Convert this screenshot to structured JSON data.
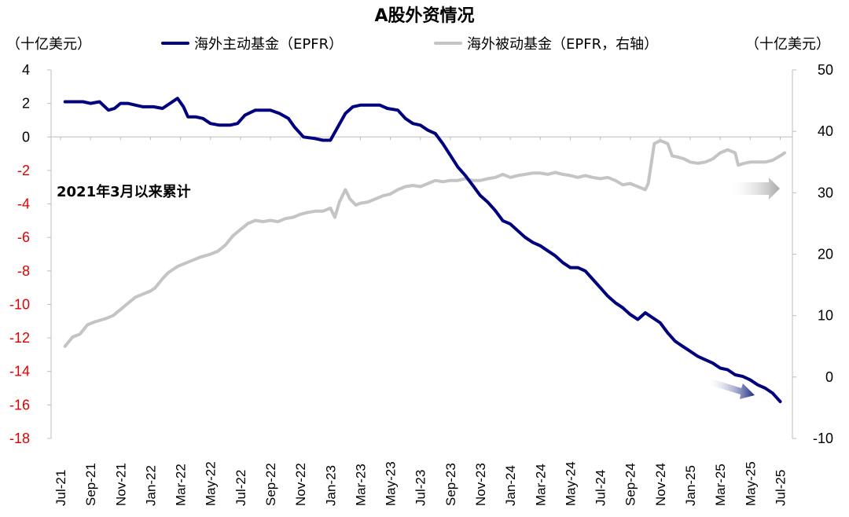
{
  "chart_data": {
    "type": "line",
    "title": "A股外资情况",
    "y_left_label": "（十亿美元）",
    "y_right_label": "（十亿美元）",
    "annotation": "2021年3月以来累计",
    "y_left": {
      "min": -18,
      "max": 4,
      "ticks": [
        4,
        2,
        0,
        -2,
        -4,
        -6,
        -8,
        -10,
        -12,
        -14,
        -16,
        -18
      ]
    },
    "y_right": {
      "min": -10,
      "max": 50,
      "ticks": [
        50,
        40,
        30,
        20,
        10,
        0,
        -10
      ]
    },
    "x_range": [
      0,
      48.5
    ],
    "x_ticks": [
      {
        "label": "Jul-21",
        "m": 0
      },
      {
        "label": "Sep-21",
        "m": 2
      },
      {
        "label": "Nov-21",
        "m": 4
      },
      {
        "label": "Jan-22",
        "m": 6
      },
      {
        "label": "Mar-22",
        "m": 8
      },
      {
        "label": "May-22",
        "m": 10
      },
      {
        "label": "Jul-22",
        "m": 12
      },
      {
        "label": "Sep-22",
        "m": 14
      },
      {
        "label": "Nov-22",
        "m": 16
      },
      {
        "label": "Jan-23",
        "m": 18
      },
      {
        "label": "Mar-23",
        "m": 20
      },
      {
        "label": "May-23",
        "m": 22
      },
      {
        "label": "Jul-23",
        "m": 24
      },
      {
        "label": "Sep-23",
        "m": 26
      },
      {
        "label": "Nov-23",
        "m": 28
      },
      {
        "label": "Jan-24",
        "m": 30
      },
      {
        "label": "Mar-24",
        "m": 32
      },
      {
        "label": "May-24",
        "m": 34
      },
      {
        "label": "Jul-24",
        "m": 36
      },
      {
        "label": "Sep-24",
        "m": 38
      },
      {
        "label": "Nov-24",
        "m": 40
      },
      {
        "label": "Jan-25",
        "m": 42
      },
      {
        "label": "Mar-25",
        "m": 44
      },
      {
        "label": "May-25",
        "m": 46
      },
      {
        "label": "Jul-25",
        "m": 48
      }
    ],
    "series": [
      {
        "name": "海外主动基金（EPFR）",
        "axis": "left",
        "color": "#00007f",
        "points": [
          [
            0.3,
            2.1
          ],
          [
            0.8,
            2.1
          ],
          [
            1.5,
            2.1
          ],
          [
            2,
            2.0
          ],
          [
            2.6,
            2.1
          ],
          [
            3.2,
            1.6
          ],
          [
            3.6,
            1.7
          ],
          [
            4,
            2.0
          ],
          [
            4.5,
            2.0
          ],
          [
            5,
            1.9
          ],
          [
            5.5,
            1.8
          ],
          [
            6.2,
            1.8
          ],
          [
            6.8,
            1.7
          ],
          [
            7.3,
            2.0
          ],
          [
            7.8,
            2.3
          ],
          [
            8.2,
            1.8
          ],
          [
            8.5,
            1.2
          ],
          [
            9,
            1.2
          ],
          [
            9.5,
            1.1
          ],
          [
            10,
            0.8
          ],
          [
            10.6,
            0.7
          ],
          [
            11.3,
            0.7
          ],
          [
            11.8,
            0.8
          ],
          [
            12.3,
            1.3
          ],
          [
            13,
            1.6
          ],
          [
            14,
            1.6
          ],
          [
            14.6,
            1.4
          ],
          [
            15.2,
            1.1
          ],
          [
            15.6,
            0.6
          ],
          [
            16.2,
            0.0
          ],
          [
            17,
            -0.1
          ],
          [
            17.5,
            -0.2
          ],
          [
            18,
            -0.2
          ],
          [
            18.5,
            0.6
          ],
          [
            19,
            1.4
          ],
          [
            19.5,
            1.8
          ],
          [
            20,
            1.9
          ],
          [
            20.7,
            1.9
          ],
          [
            21.3,
            1.9
          ],
          [
            21.8,
            1.7
          ],
          [
            22.5,
            1.6
          ],
          [
            23,
            1.1
          ],
          [
            23.5,
            0.8
          ],
          [
            24,
            0.7
          ],
          [
            24.5,
            0.4
          ],
          [
            25,
            0.2
          ],
          [
            25.5,
            -0.4
          ],
          [
            26,
            -1.1
          ],
          [
            26.5,
            -1.8
          ],
          [
            27,
            -2.3
          ],
          [
            27.5,
            -2.9
          ],
          [
            28,
            -3.5
          ],
          [
            28.5,
            -3.9
          ],
          [
            29,
            -4.4
          ],
          [
            29.5,
            -5.0
          ],
          [
            30,
            -5.2
          ],
          [
            30.5,
            -5.6
          ],
          [
            31,
            -6.0
          ],
          [
            31.5,
            -6.3
          ],
          [
            32,
            -6.5
          ],
          [
            32.5,
            -6.8
          ],
          [
            33,
            -7.1
          ],
          [
            33.5,
            -7.5
          ],
          [
            34,
            -7.8
          ],
          [
            34.5,
            -7.8
          ],
          [
            35,
            -8.0
          ],
          [
            35.5,
            -8.5
          ],
          [
            36,
            -9.0
          ],
          [
            36.5,
            -9.5
          ],
          [
            37,
            -9.9
          ],
          [
            37.5,
            -10.2
          ],
          [
            38,
            -10.6
          ],
          [
            38.5,
            -10.9
          ],
          [
            39,
            -10.5
          ],
          [
            39.5,
            -10.8
          ],
          [
            40,
            -11.1
          ],
          [
            40.5,
            -11.7
          ],
          [
            41,
            -12.2
          ],
          [
            41.5,
            -12.5
          ],
          [
            42,
            -12.8
          ],
          [
            42.5,
            -13.1
          ],
          [
            43,
            -13.3
          ],
          [
            43.5,
            -13.5
          ],
          [
            44,
            -13.8
          ],
          [
            44.5,
            -13.9
          ],
          [
            45,
            -14.2
          ],
          [
            45.5,
            -14.3
          ],
          [
            46,
            -14.5
          ],
          [
            46.5,
            -14.8
          ],
          [
            47,
            -15.0
          ],
          [
            47.5,
            -15.3
          ],
          [
            48,
            -15.8
          ]
        ]
      },
      {
        "name": "海外被动基金（EPFR，右轴）",
        "axis": "right",
        "color": "#c4c4c4",
        "points": [
          [
            0.3,
            5
          ],
          [
            0.8,
            6.5
          ],
          [
            1.3,
            7
          ],
          [
            1.8,
            8.5
          ],
          [
            2.3,
            9
          ],
          [
            3,
            9.5
          ],
          [
            3.5,
            10
          ],
          [
            4,
            11
          ],
          [
            4.5,
            12
          ],
          [
            5,
            13
          ],
          [
            5.5,
            13.5
          ],
          [
            6,
            14
          ],
          [
            6.3,
            14.5
          ],
          [
            6.8,
            16
          ],
          [
            7.2,
            17
          ],
          [
            7.8,
            18
          ],
          [
            8.3,
            18.5
          ],
          [
            8.8,
            19
          ],
          [
            9.3,
            19.5
          ],
          [
            10,
            20
          ],
          [
            10.5,
            20.5
          ],
          [
            11,
            21.5
          ],
          [
            11.5,
            23
          ],
          [
            12,
            24
          ],
          [
            12.5,
            25
          ],
          [
            13,
            25.5
          ],
          [
            13.5,
            25.3
          ],
          [
            14,
            25.5
          ],
          [
            14.5,
            25.3
          ],
          [
            15,
            25.8
          ],
          [
            15.5,
            26
          ],
          [
            16,
            26.5
          ],
          [
            16.5,
            26.8
          ],
          [
            17,
            27
          ],
          [
            17.5,
            27
          ],
          [
            18,
            27.5
          ],
          [
            18.3,
            26
          ],
          [
            18.6,
            28.5
          ],
          [
            19,
            30.5
          ],
          [
            19.3,
            29
          ],
          [
            19.7,
            28
          ],
          [
            20,
            28.3
          ],
          [
            20.5,
            28.5
          ],
          [
            21,
            29
          ],
          [
            21.5,
            29.5
          ],
          [
            22,
            29.8
          ],
          [
            22.5,
            30.5
          ],
          [
            23,
            31
          ],
          [
            23.5,
            31.2
          ],
          [
            24,
            31
          ],
          [
            24.5,
            31.5
          ],
          [
            25,
            32
          ],
          [
            25.5,
            31.8
          ],
          [
            26,
            32
          ],
          [
            26.5,
            32
          ],
          [
            27,
            32.3
          ],
          [
            27.5,
            32
          ],
          [
            28,
            32
          ],
          [
            28.5,
            32.3
          ],
          [
            29,
            32.5
          ],
          [
            29.5,
            33
          ],
          [
            30,
            32.5
          ],
          [
            30.5,
            32.8
          ],
          [
            31,
            33
          ],
          [
            31.5,
            33.2
          ],
          [
            32,
            33.2
          ],
          [
            32.5,
            33
          ],
          [
            33,
            33.3
          ],
          [
            33.5,
            33
          ],
          [
            34,
            32.8
          ],
          [
            34.5,
            32.5
          ],
          [
            35,
            32.8
          ],
          [
            35.5,
            32.5
          ],
          [
            36,
            32.3
          ],
          [
            36.5,
            32.5
          ],
          [
            37,
            32
          ],
          [
            37.5,
            31.3
          ],
          [
            38,
            31.5
          ],
          [
            38.5,
            31
          ],
          [
            39,
            30.5
          ],
          [
            39.2,
            31.5
          ],
          [
            39.6,
            38
          ],
          [
            40,
            38.5
          ],
          [
            40.5,
            38
          ],
          [
            40.8,
            36
          ],
          [
            41.2,
            35.8
          ],
          [
            41.6,
            35.5
          ],
          [
            42,
            35
          ],
          [
            42.5,
            34.8
          ],
          [
            43,
            35
          ],
          [
            43.5,
            35.5
          ],
          [
            44,
            36.5
          ],
          [
            44.5,
            37
          ],
          [
            45,
            36.5
          ],
          [
            45.2,
            34.5
          ],
          [
            45.6,
            34.8
          ],
          [
            46,
            35
          ],
          [
            46.5,
            35
          ],
          [
            47,
            35
          ],
          [
            47.5,
            35.3
          ],
          [
            48,
            36
          ],
          [
            48.3,
            36.5
          ]
        ]
      }
    ]
  }
}
